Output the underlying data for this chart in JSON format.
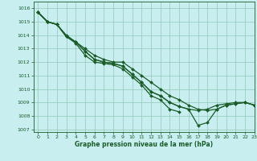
{
  "title": "Graphe pression niveau de la mer (hPa)",
  "background_color": "#c8eef0",
  "grid_color": "#90c8b8",
  "line_color": "#1a5c28",
  "xlim": [
    -0.5,
    23
  ],
  "ylim": [
    1006.8,
    1016.5
  ],
  "yticks": [
    1007,
    1008,
    1009,
    1010,
    1011,
    1012,
    1013,
    1014,
    1015,
    1016
  ],
  "xticks": [
    0,
    1,
    2,
    3,
    4,
    5,
    6,
    7,
    8,
    9,
    10,
    11,
    12,
    13,
    14,
    15,
    16,
    17,
    18,
    19,
    20,
    21,
    22,
    23
  ],
  "series": [
    [
      1015.7,
      1015.0,
      null,
      null,
      null,
      null,
      null,
      null,
      null,
      null,
      null,
      null,
      null,
      null,
      null,
      null,
      null,
      null,
      null,
      null,
      null,
      null,
      null,
      null
    ],
    [
      1015.7,
      1015.0,
      1014.8,
      1013.9,
      1013.4,
      1012.5,
      1012.0,
      1011.9,
      1011.8,
      1011.5,
      1010.9,
      1010.3,
      1009.5,
      1009.2,
      1008.5,
      1008.3,
      null,
      null,
      null,
      null,
      null,
      null,
      null,
      null
    ],
    [
      1015.7,
      1015.0,
      1014.8,
      1013.9,
      1013.5,
      1012.8,
      1012.2,
      1012.0,
      1011.9,
      1011.7,
      1011.1,
      1010.5,
      1009.8,
      1009.5,
      1009.0,
      1008.7,
      1008.5,
      1008.4,
      1008.5,
      1008.8,
      1008.9,
      1009.0,
      1009.0,
      1008.8
    ],
    [
      1015.7,
      1015.0,
      1014.8,
      1014.0,
      1013.5,
      1013.0,
      1012.5,
      1012.2,
      1012.0,
      1012.0,
      1011.5,
      1011.0,
      1010.5,
      1010.0,
      1009.5,
      1009.2,
      1008.8,
      1008.5,
      1008.4,
      1008.5,
      1008.8,
      1008.9,
      1009.0,
      1008.8
    ]
  ],
  "series2": [
    [
      1015.7,
      1015.0,
      1014.8,
      1013.9,
      1013.5,
      1012.8,
      1012.2,
      1012.0,
      1011.9,
      1011.7,
      1011.1,
      1010.5,
      1009.8,
      1009.5,
      1009.0,
      1008.7,
      1008.5,
      1007.3,
      1007.5,
      1008.5,
      1008.8,
      1008.9,
      1009.0,
      1008.8
    ]
  ]
}
